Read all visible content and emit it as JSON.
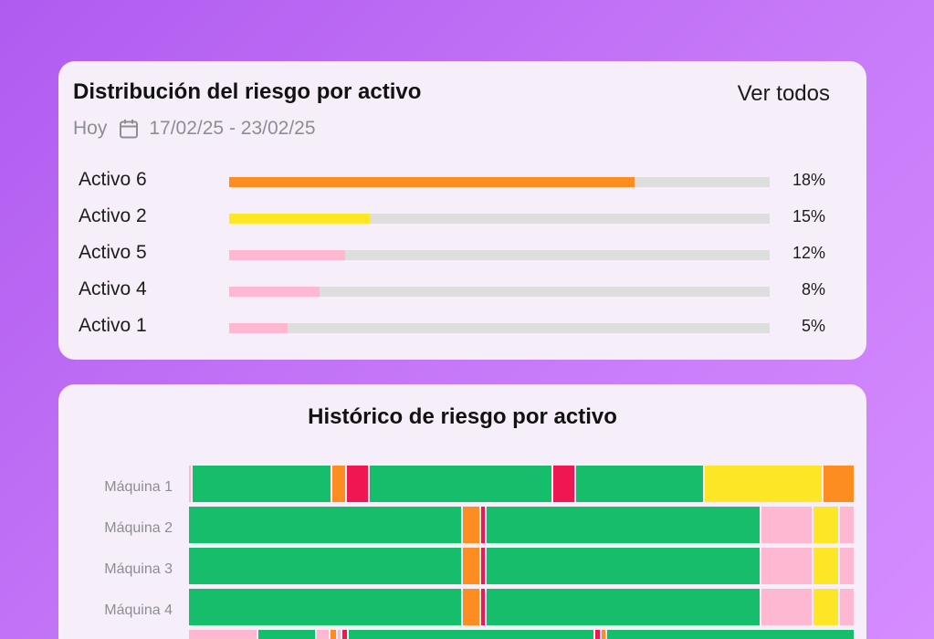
{
  "distribution": {
    "title": "Distribución del riesgo por activo",
    "view_all_label": "Ver todos",
    "period_label": "Hoy",
    "date_range": "17/02/25 - 23/02/25",
    "calendar_icon": "calendar-icon",
    "items": [
      {
        "label": "Activo 6",
        "percent_label": "18%",
        "fill_fraction": 0.75,
        "color": "#fd8c21"
      },
      {
        "label": "Activo 2",
        "percent_label": "15%",
        "fill_fraction": 0.26,
        "color": "#fde625"
      },
      {
        "label": "Activo 5",
        "percent_label": "12%",
        "fill_fraction": 0.215,
        "color": "#ffb8d2"
      },
      {
        "label": "Activo 4",
        "percent_label": "8%",
        "fill_fraction": 0.168,
        "color": "#ffb8d2"
      },
      {
        "label": "Activo 1",
        "percent_label": "5%",
        "fill_fraction": 0.108,
        "color": "#ffb8d2"
      }
    ]
  },
  "history": {
    "title": "Histórico de riesgo por activo",
    "colors": {
      "green": "#16bd6b",
      "orange": "#fd8c21",
      "red": "#ee1752",
      "yellow": "#fde625",
      "pink": "#ffb8d2"
    },
    "machines": [
      {
        "label": "Máquina 1",
        "segments": [
          [
            "pink",
            0.003
          ],
          [
            "green",
            0.21
          ],
          [
            "orange",
            0.02
          ],
          [
            "red",
            0.031
          ],
          [
            "green",
            0.278
          ],
          [
            "red",
            0.031
          ],
          [
            "green",
            0.194
          ],
          [
            "yellow",
            0.178
          ],
          [
            "orange",
            0.046
          ]
        ]
      },
      {
        "label": "Máquina 2",
        "segments": [
          [
            "green",
            0.413
          ],
          [
            "orange",
            0.025
          ],
          [
            "red",
            0.006
          ],
          [
            "green",
            0.413
          ],
          [
            "pink",
            0.077
          ],
          [
            "yellow",
            0.037
          ],
          [
            "pink",
            0.021
          ]
        ]
      },
      {
        "label": "Máquina 3",
        "segments": [
          [
            "green",
            0.413
          ],
          [
            "orange",
            0.025
          ],
          [
            "red",
            0.006
          ],
          [
            "green",
            0.413
          ],
          [
            "pink",
            0.077
          ],
          [
            "yellow",
            0.037
          ],
          [
            "pink",
            0.021
          ]
        ]
      },
      {
        "label": "Máquina 4",
        "segments": [
          [
            "green",
            0.413
          ],
          [
            "orange",
            0.025
          ],
          [
            "red",
            0.006
          ],
          [
            "green",
            0.413
          ],
          [
            "pink",
            0.077
          ],
          [
            "yellow",
            0.037
          ],
          [
            "pink",
            0.021
          ]
        ]
      },
      {
        "label": "",
        "segments": [
          [
            "pink",
            0.103
          ],
          [
            "green",
            0.085
          ],
          [
            "pink",
            0.018
          ],
          [
            "orange",
            0.008
          ],
          [
            "pink",
            0.005
          ],
          [
            "red",
            0.006
          ],
          [
            "green",
            0.372
          ],
          [
            "red",
            0.006
          ],
          [
            "orange",
            0.006
          ],
          [
            "green",
            0.374
          ]
        ]
      }
    ]
  }
}
